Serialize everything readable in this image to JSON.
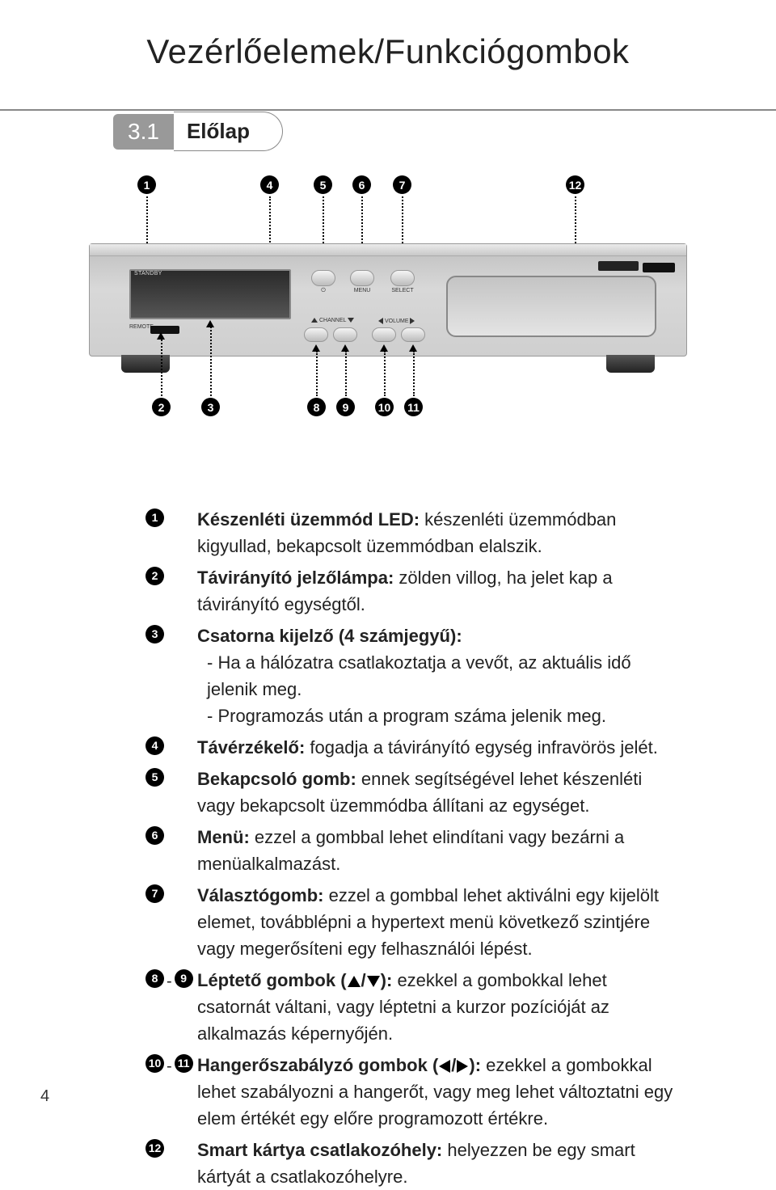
{
  "page_title": "Vezérlőelemek/Funkciógombok",
  "section_number": "3.1",
  "section_title": "Előlap",
  "page_number": "4",
  "device_labels": {
    "standby": "STANDBY",
    "remote": "REMOTE",
    "menu": "MENU",
    "select": "SELECT",
    "channel": "CHANNEL",
    "volume": "VOLUME"
  },
  "callouts_top": [
    "1",
    "4",
    "5",
    "6",
    "7",
    "12"
  ],
  "callouts_bottom": [
    "2",
    "3",
    "8",
    "9",
    "10",
    "11"
  ],
  "items": [
    {
      "nums": [
        "1"
      ],
      "bold": "Készenléti üzemmód LED:",
      "text": " készenléti üzemmódban kigyullad, bekapcsolt üzemmódban elalszik."
    },
    {
      "nums": [
        "2"
      ],
      "bold": "Távirányító jelzőlámpa:",
      "text": " zölden villog, ha jelet kap a távirányító egységtől."
    },
    {
      "nums": [
        "3"
      ],
      "bold": "Csatorna kijelző (4 számjegyű):",
      "text": "",
      "subs": [
        "- Ha a hálózatra csatlakoztatja a vevőt, az aktuális idő jelenik meg.",
        "- Programozás után a program száma jelenik meg."
      ]
    },
    {
      "nums": [
        "4"
      ],
      "bold": "Távérzékelő:",
      "text": " fogadja a távirányító egység infravörös jelét."
    },
    {
      "nums": [
        "5"
      ],
      "bold": "Bekapcsoló gomb:",
      "text": " ennek segítségével lehet készenléti vagy bekapcsolt üzemmódba állítani az egységet."
    },
    {
      "nums": [
        "6"
      ],
      "bold": "Menü:",
      "text": " ezzel a gombbal lehet elindítani vagy bezárni a menüalkalmazást."
    },
    {
      "nums": [
        "7"
      ],
      "bold": "Választógomb:",
      "text": " ezzel a gombbal lehet aktiválni egy kijelölt elemet, továbblépni a hypertext menü következő szintjére vagy megerősíteni egy felhasználói lépést."
    },
    {
      "nums": [
        "8",
        "9"
      ],
      "sep": "-",
      "bold_html": "Léptető gombok (▲/▼):",
      "text": " ezekkel a gombokkal lehet csatornát váltani, vagy léptetni a kurzor pozícióját az alkalmazás képernyőjén."
    },
    {
      "nums": [
        "10",
        "11"
      ],
      "sep": "-",
      "bold_html": "Hangerőszabályzó gombok (◀/▶):",
      "text": " ezekkel a gombokkal lehet szabályozni a hangerőt, vagy meg lehet változtatni egy elem értékét egy előre programozott értékre."
    },
    {
      "nums": [
        "12"
      ],
      "bold": "Smart kártya csatlakozóhely:",
      "text": " helyezzen be egy smart kártyát a csatlakozóhelyre."
    }
  ],
  "colors": {
    "background": "#ffffff",
    "text": "#222222",
    "rule": "#888888",
    "section_bg": "#999999",
    "black": "#000000"
  }
}
